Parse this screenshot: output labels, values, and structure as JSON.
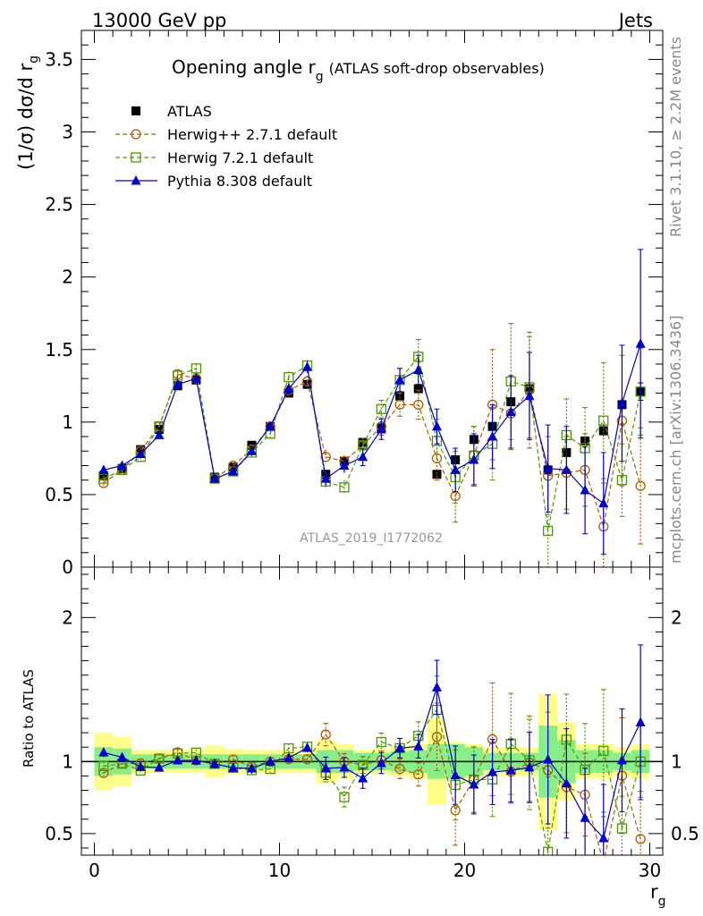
{
  "header": {
    "left": "13000 GeV pp",
    "right": "Jets"
  },
  "side_labels": {
    "rivet": "Rivet 3.1.10, ≥ 2.2M events",
    "mcplots": "mcplots.cern.ch [arXiv:1306.3436]"
  },
  "chart_data": [
    {
      "type": "scatter",
      "panel": "main",
      "title_main": "Opening angle r",
      "title_sub": "g",
      "title_rest": "(ATLAS soft-drop observables)",
      "ylabel": "(1/σ) dσ/d r",
      "ylabel_sub": "g",
      "watermark": "ATLAS_2019_I1772062",
      "xlim": [
        -0.7,
        30.7
      ],
      "ylim": [
        0,
        3.7
      ],
      "yticks": [
        0,
        0.5,
        1,
        1.5,
        2,
        2.5,
        3,
        3.5
      ],
      "ytick_labels": [
        "0",
        "0.5",
        "1",
        "1.5",
        "2",
        "2.5",
        "3",
        "3.5"
      ],
      "x": [
        0.5,
        1.5,
        2.5,
        3.5,
        4.5,
        5.5,
        6.5,
        7.5,
        8.5,
        9.5,
        10.5,
        11.5,
        12.5,
        13.5,
        14.5,
        15.5,
        16.5,
        17.5,
        18.5,
        19.5,
        20.5,
        21.5,
        22.5,
        23.5,
        24.5,
        25.5,
        26.5,
        27.5,
        28.5,
        29.5
      ],
      "series": [
        {
          "name": "ATLAS",
          "color": "#000000",
          "marker": "square-filled",
          "values": [
            0.63,
            0.68,
            0.81,
            0.95,
            1.25,
            1.29,
            0.62,
            0.69,
            0.84,
            0.97,
            1.2,
            1.26,
            0.64,
            0.73,
            0.86,
            0.96,
            1.18,
            1.23,
            0.64,
            0.74,
            0.88,
            0.97,
            1.14,
            1.23,
            0.67,
            0.79,
            0.87,
            0.94,
            1.12,
            1.21
          ],
          "errors": [
            0.02,
            0.02,
            0.02,
            0.02,
            0.02,
            0.02,
            0.02,
            0.02,
            0.02,
            0.02,
            0.02,
            0.02,
            0.02,
            0.02,
            0.02,
            0.02,
            0.03,
            0.03,
            0.02,
            0.02,
            0.03,
            0.03,
            0.03,
            0.04,
            0.03,
            0.03,
            0.03,
            0.04,
            0.05,
            0.06
          ]
        },
        {
          "name": "Herwig++ 2.7.1 default",
          "color": "#b35900",
          "marker": "circle-open",
          "dash": "5,3",
          "values": [
            0.58,
            0.67,
            0.8,
            0.97,
            1.33,
            1.3,
            0.61,
            0.7,
            0.81,
            0.97,
            1.22,
            1.28,
            0.76,
            0.73,
            0.84,
            0.97,
            1.12,
            1.12,
            0.75,
            0.49,
            0.77,
            1.12,
            1.06,
            1.22,
            0.63,
            0.65,
            0.67,
            0.28,
            1.01,
            0.56
          ],
          "errors": [
            0.02,
            0.02,
            0.02,
            0.03,
            0.03,
            0.03,
            0.02,
            0.02,
            0.03,
            0.03,
            0.04,
            0.04,
            0.05,
            0.04,
            0.05,
            0.06,
            0.08,
            0.1,
            0.15,
            0.18,
            0.2,
            0.38,
            0.25,
            0.4,
            0.27,
            0.25,
            0.25,
            0.3,
            0.45,
            0.4
          ]
        },
        {
          "name": "Herwig 7.2.1 default",
          "color": "#4c9900",
          "marker": "square-open",
          "dash": "5,3",
          "values": [
            0.61,
            0.67,
            0.76,
            0.97,
            1.32,
            1.37,
            0.61,
            0.66,
            0.79,
            0.92,
            1.31,
            1.39,
            0.59,
            0.55,
            0.84,
            1.09,
            1.29,
            1.45,
            0.87,
            0.62,
            0.77,
            0.85,
            1.28,
            1.24,
            0.25,
            0.91,
            0.82,
            1.01,
            0.6,
            1.21
          ],
          "errors": [
            0.02,
            0.02,
            0.02,
            0.03,
            0.03,
            0.03,
            0.02,
            0.02,
            0.03,
            0.03,
            0.04,
            0.04,
            0.04,
            0.05,
            0.05,
            0.06,
            0.08,
            0.12,
            0.15,
            0.18,
            0.2,
            0.25,
            0.4,
            0.35,
            0.35,
            0.25,
            0.28,
            0.4,
            0.25,
            0.3
          ]
        },
        {
          "name": "Pythia 8.308 default",
          "color": "#0000cc",
          "marker": "triangle-filled",
          "values": [
            0.67,
            0.7,
            0.78,
            0.91,
            1.26,
            1.3,
            0.61,
            0.66,
            0.8,
            0.97,
            1.23,
            1.38,
            0.61,
            0.7,
            0.76,
            0.95,
            1.29,
            1.36,
            0.97,
            0.67,
            0.74,
            0.9,
            1.07,
            1.18,
            0.68,
            0.67,
            0.53,
            0.44,
            1.13,
            1.54
          ],
          "errors": [
            0.02,
            0.02,
            0.02,
            0.02,
            0.03,
            0.03,
            0.02,
            0.02,
            0.03,
            0.03,
            0.04,
            0.04,
            0.05,
            0.05,
            0.06,
            0.07,
            0.08,
            0.1,
            0.12,
            0.15,
            0.18,
            0.22,
            0.25,
            0.3,
            0.3,
            0.3,
            0.3,
            0.35,
            0.4,
            0.65
          ]
        }
      ]
    },
    {
      "type": "scatter",
      "panel": "ratio",
      "ylabel": "Ratio to ATLAS",
      "xlabel": "r",
      "xlabel_sub": "g",
      "xlim": [
        -0.7,
        30.7
      ],
      "ylim": [
        0.35,
        2.35
      ],
      "yticks": [
        0.5,
        1,
        2
      ],
      "ytick_labels": [
        "0.5",
        "1",
        "2"
      ],
      "xticks": [
        0,
        10,
        20,
        30
      ],
      "xtick_labels": [
        "0",
        "10",
        "20",
        "30"
      ],
      "band_inner_half_width": [
        0.1,
        0.09,
        0.05,
        0.05,
        0.05,
        0.05,
        0.05,
        0.05,
        0.05,
        0.05,
        0.05,
        0.05,
        0.08,
        0.08,
        0.06,
        0.06,
        0.07,
        0.08,
        0.12,
        0.12,
        0.1,
        0.06,
        0.06,
        0.06,
        0.25,
        0.15,
        0.08,
        0.08,
        0.06,
        0.08
      ],
      "band_outer_half_width": [
        0.2,
        0.17,
        0.08,
        0.08,
        0.08,
        0.08,
        0.11,
        0.09,
        0.08,
        0.08,
        0.08,
        0.08,
        0.15,
        0.12,
        0.08,
        0.09,
        0.1,
        0.12,
        0.3,
        0.14,
        0.12,
        0.1,
        0.1,
        0.1,
        0.47,
        0.27,
        0.12,
        0.12,
        0.1,
        0.12
      ]
    }
  ]
}
